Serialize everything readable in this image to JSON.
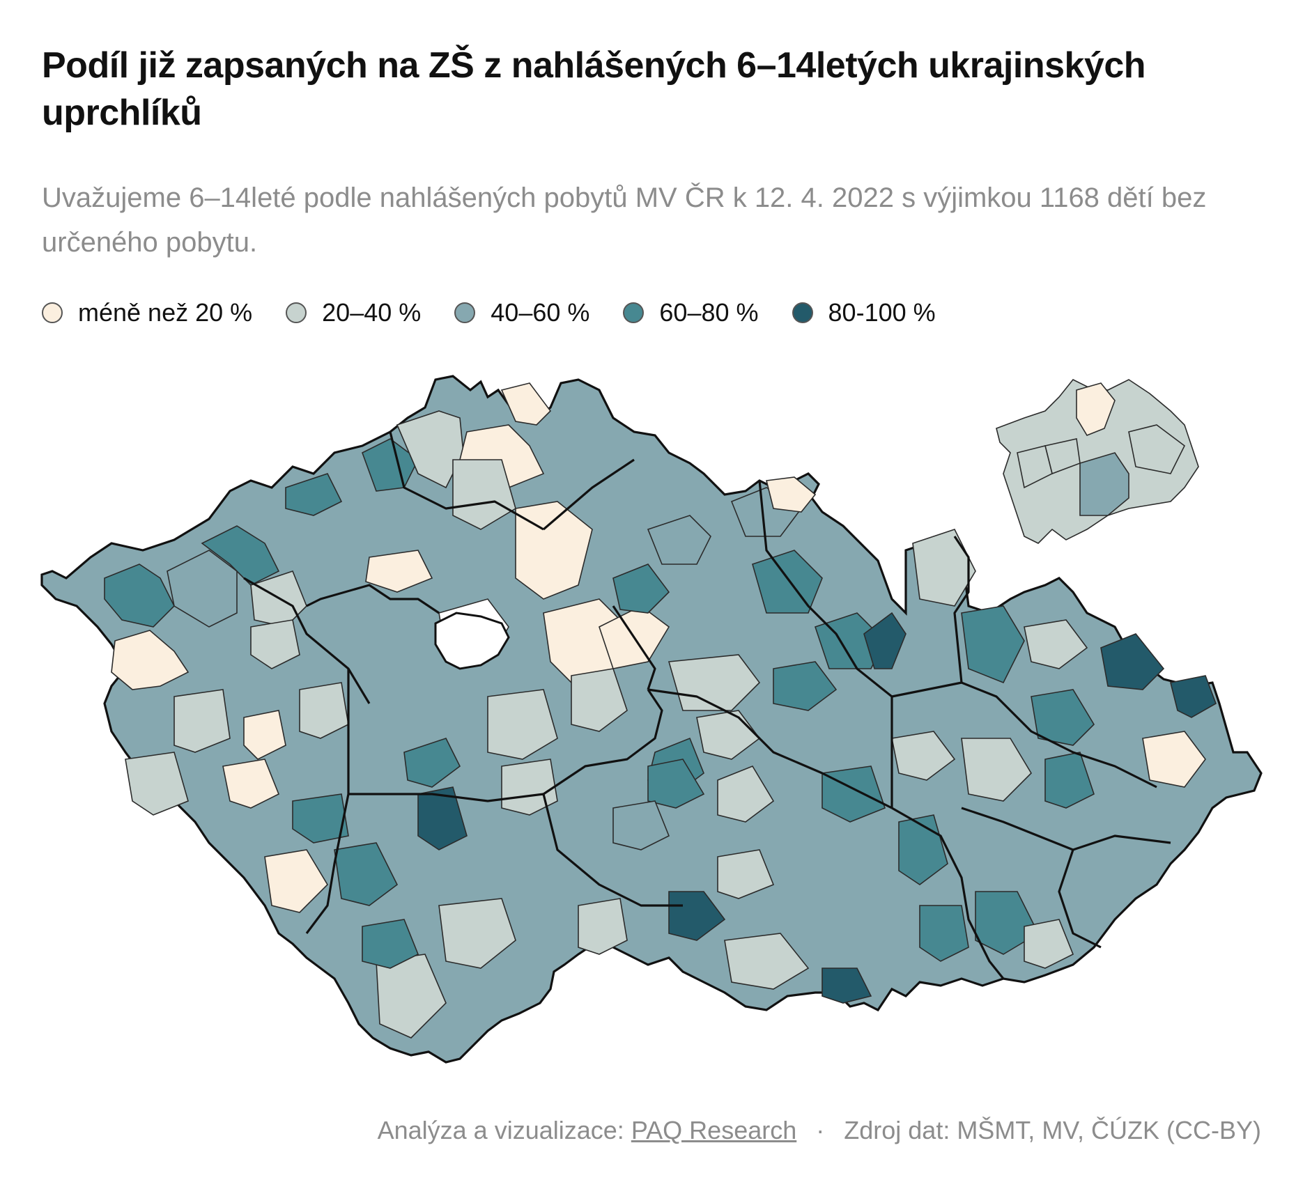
{
  "title": "Podíl již zapsaných na ZŠ z nahlášených 6–14letých ukrajinských uprchlíků",
  "subtitle": "Uvažujeme 6–14leté podle nahlášených pobytů MV ČR k 12. 4. 2022 s výjimkou 1168 dětí bez určeného pobytu.",
  "legend": [
    {
      "label": "méně než 20 %",
      "color": "#fbefdf"
    },
    {
      "label": "20–40 %",
      "color": "#c7d3cf"
    },
    {
      "label": "40–60 %",
      "color": "#86a8b0"
    },
    {
      "label": "60–80 %",
      "color": "#478891"
    },
    {
      "label": "80-100 %",
      "color": "#235a6a"
    }
  ],
  "footer": {
    "analysis_prefix": "Analýza a vizualizace:",
    "analysis_link": "PAQ Research",
    "separator": "·",
    "source": "Zdroj dat: MŠMT, MV, ČÚZK (CC-BY)"
  }
}
